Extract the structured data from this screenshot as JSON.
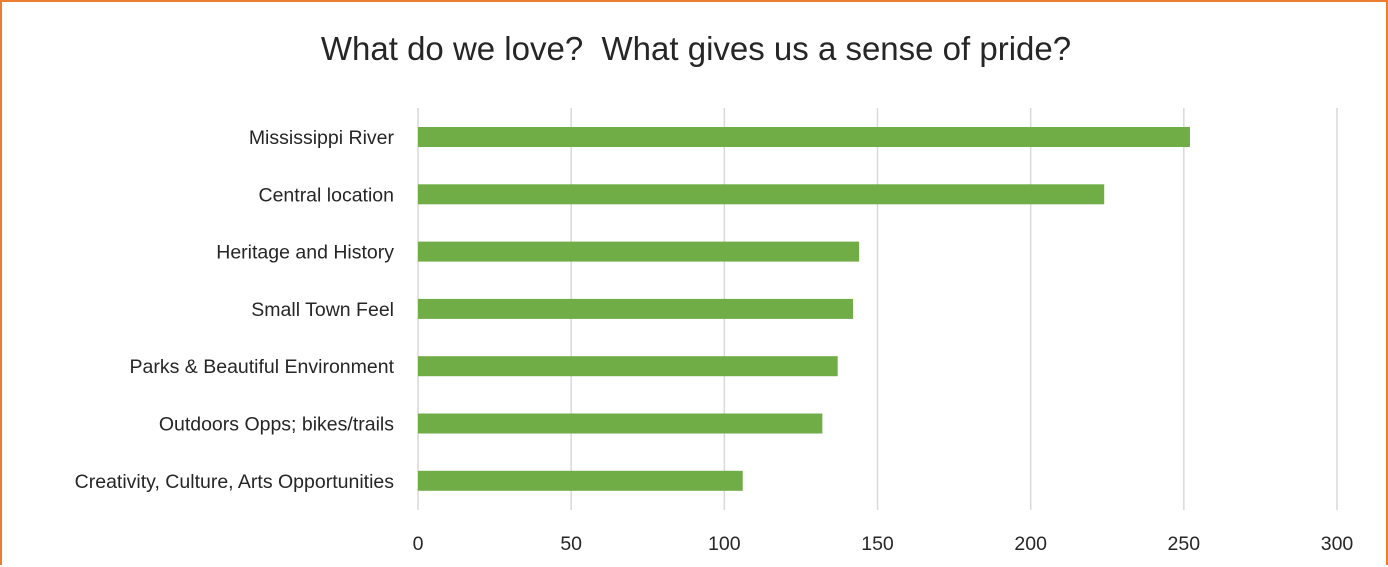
{
  "chart_data": {
    "type": "bar",
    "orientation": "horizontal",
    "title": "What do we love?  What gives us a sense of pride?",
    "categories": [
      "Mississippi River",
      "Central location",
      "Heritage and History",
      "Small Town Feel",
      "Parks & Beautiful Environment",
      "Outdoors Opps; bikes/trails",
      "Creativity, Culture, Arts Opportunities"
    ],
    "values": [
      252,
      224,
      144,
      142,
      137,
      132,
      106
    ],
    "xlabel": "",
    "ylabel": "",
    "xlim": [
      0,
      300
    ],
    "xticks": [
      "0",
      "50",
      "100",
      "150",
      "200",
      "250",
      "300"
    ],
    "grid": "vertical",
    "legend": "none",
    "colors": {
      "bar": "#70AD47",
      "grid": "#D9D9D9",
      "border": "#ED7D31",
      "text": "#262626"
    }
  }
}
